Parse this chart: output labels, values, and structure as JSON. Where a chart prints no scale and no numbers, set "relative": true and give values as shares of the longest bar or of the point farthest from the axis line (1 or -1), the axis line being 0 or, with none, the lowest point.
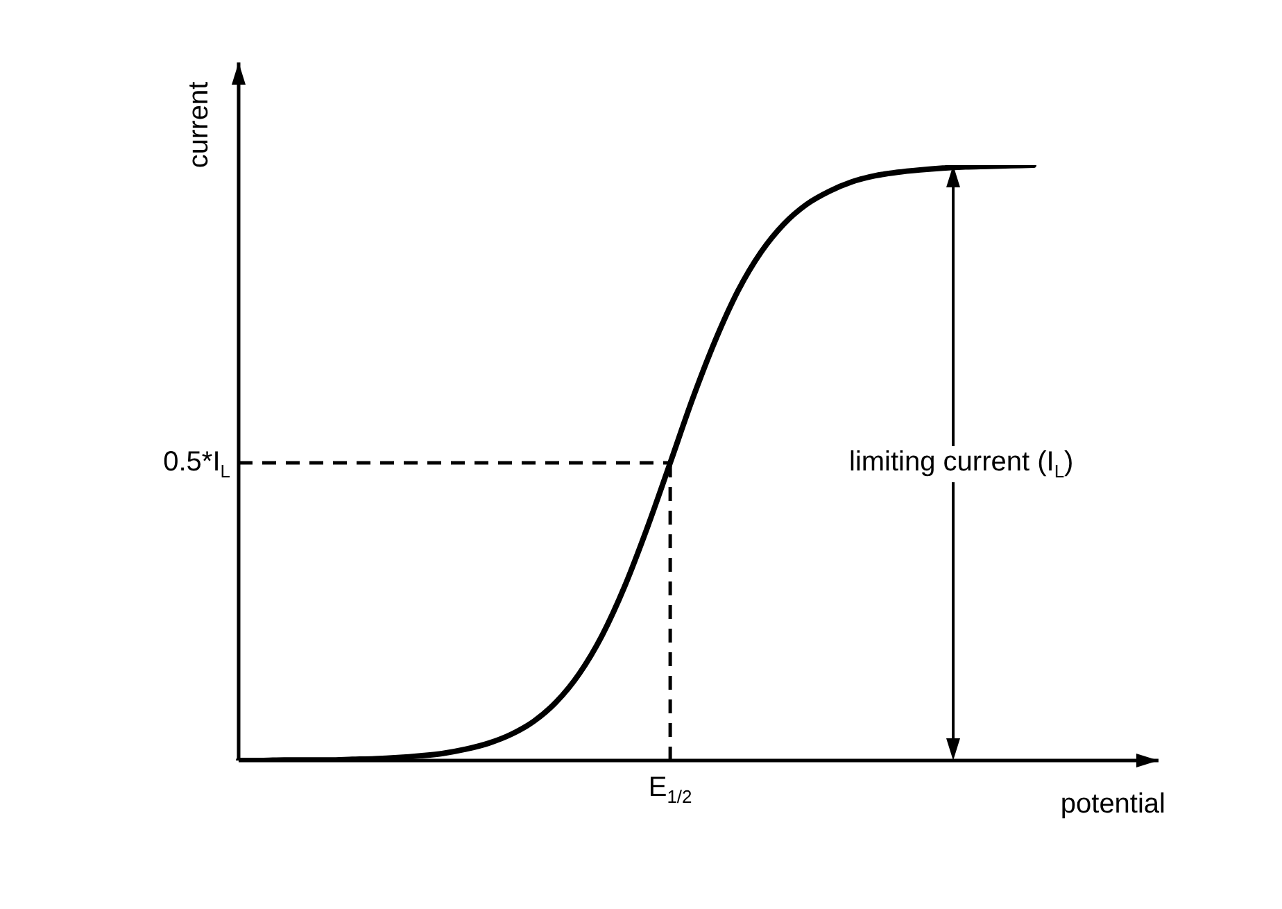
{
  "chart_data": {
    "type": "line",
    "relative": true,
    "xlabel": "potential",
    "ylabel": "current",
    "marker": "none",
    "line_style": "solid",
    "categories": [
      null,
      null,
      null,
      null,
      null,
      null,
      null,
      null,
      null,
      null,
      null,
      null,
      null,
      null,
      null,
      null,
      null,
      null,
      null,
      null,
      null,
      null,
      null,
      null,
      null,
      null,
      null,
      null,
      null,
      null,
      null,
      null,
      null,
      null,
      null,
      null
    ],
    "series": [
      {
        "color": "#000000",
        "values": [
          0,
          0,
          0.001,
          0.001,
          0.001,
          0.002,
          0.003,
          0.005,
          0.008,
          0.012,
          0.019,
          0.029,
          0.044,
          0.066,
          0.099,
          0.146,
          0.21,
          0.293,
          0.392,
          0.5,
          0.609,
          0.707,
          0.79,
          0.854,
          0.901,
          0.934,
          0.956,
          0.972,
          0.982,
          0.988,
          0.992,
          0.995,
          0.997,
          0.998,
          0.999,
          1
        ]
      }
    ],
    "annotations": [
      "0.5*I$_{L}$",
      "E$_{1/2}$",
      "limiting current (I$_{L}$)"
    ]
  }
}
